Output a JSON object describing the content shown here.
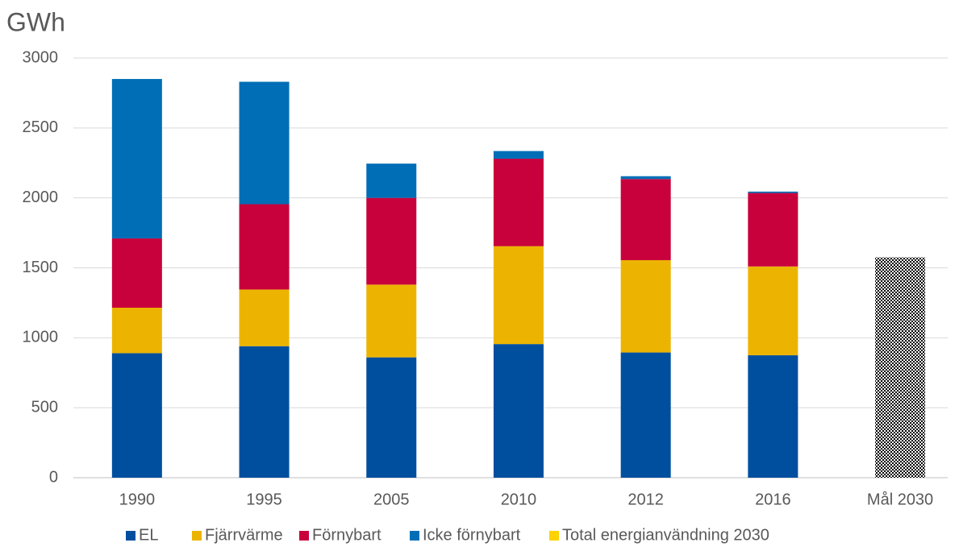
{
  "chart_data": {
    "type": "stacked_bar",
    "title": "GWh",
    "categories": [
      "1990",
      "1995",
      "2005",
      "2010",
      "2012",
      "2016",
      "Mål 2030"
    ],
    "series": [
      {
        "name": "EL",
        "color": "#004f9f",
        "values": [
          890,
          940,
          860,
          955,
          895,
          875,
          null
        ]
      },
      {
        "name": "Fjärrvärme",
        "color": "#ecb400",
        "values": [
          325,
          405,
          520,
          700,
          660,
          635,
          null
        ]
      },
      {
        "name": "Förnybart",
        "color": "#c8003c",
        "values": [
          495,
          610,
          620,
          625,
          580,
          525,
          null
        ]
      },
      {
        "name": "Icke förnybart",
        "color": "#006eb6",
        "values": [
          1140,
          875,
          245,
          55,
          20,
          10,
          null
        ]
      },
      {
        "name": "Total energianvändning 2030",
        "color": "#ffd200",
        "pattern": "checker",
        "values": [
          null,
          null,
          null,
          null,
          null,
          null,
          1575
        ]
      }
    ],
    "ylim": [
      0,
      3000
    ],
    "yticks": [
      0,
      500,
      1000,
      1500,
      2000,
      2500,
      3000
    ],
    "grid": true,
    "legend": "bottom"
  }
}
